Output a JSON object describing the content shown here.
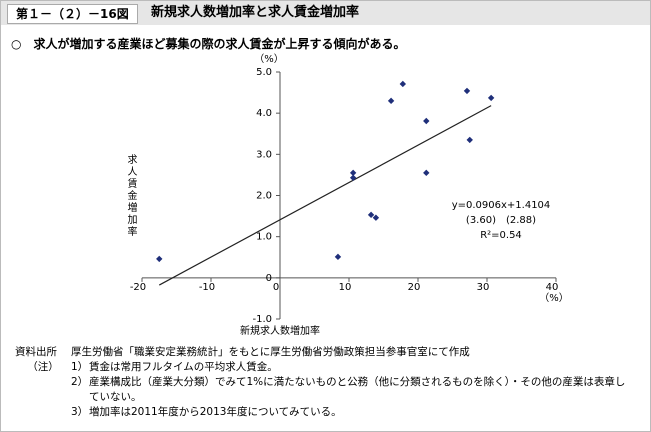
{
  "header": {
    "figure_number": "第１－（２）－16図"
  },
  "chart_data": {
    "type": "scatter",
    "title": "新規求人数増加率と求人賃金増加率",
    "subtitle": "○　求人が増加する産業ほど募集の際の求人賃金が上昇する傾向がある。",
    "x_label": "新規求人数増加率",
    "y_label": "求人賃金増加率",
    "x_unit": "（%）",
    "y_unit": "（%）",
    "x": [
      -17.5,
      8.4,
      10.6,
      10.6,
      13.2,
      13.9,
      16.1,
      17.8,
      21.2,
      21.2,
      27.1,
      27.5,
      30.6
    ],
    "values": [
      0.46,
      0.51,
      2.55,
      2.43,
      1.53,
      1.46,
      4.3,
      4.71,
      3.81,
      2.55,
      4.54,
      3.35,
      4.37
    ],
    "color": "#1f2f7a",
    "trendline": {
      "slope": 0.0906,
      "intercept": 1.4104,
      "color": "#222222"
    },
    "annotations": [
      "y=0.0906x+1.4104",
      "(3.60)　(2.88)",
      "R²=0.54"
    ],
    "xlim": [
      -20,
      40
    ],
    "xticks": [
      -20,
      -10,
      0,
      10,
      20,
      30,
      40
    ],
    "ylim": [
      -1,
      5
    ],
    "yticks": [
      {
        "value": -1,
        "label": "-1.0"
      },
      {
        "value": 0,
        "label": "0"
      },
      {
        "value": 1,
        "label": "1.0"
      },
      {
        "value": 2,
        "label": "2.0"
      },
      {
        "value": 3,
        "label": "3.0"
      },
      {
        "value": 4,
        "label": "4.0"
      },
      {
        "value": 5,
        "label": "5.0"
      }
    ],
    "grid": false
  },
  "notes": {
    "source_label": "資料出所",
    "source": "厚生労働省「職業安定業務統計」をもとに厚生労働省労働政策担当参事官室にて作成",
    "note_label": "（注）",
    "items": [
      {
        "number": "1）",
        "text": "賃金は常用フルタイムの平均求人賃金。"
      },
      {
        "number": "2）",
        "text": "産業構成比（産業大分類）でみて1%に満たないものと公務（他に分類されるものを除く）・その他の産業は表章していない。"
      },
      {
        "number": "3）",
        "text": "増加率は2011年度から2013年度についてみている。"
      }
    ]
  }
}
